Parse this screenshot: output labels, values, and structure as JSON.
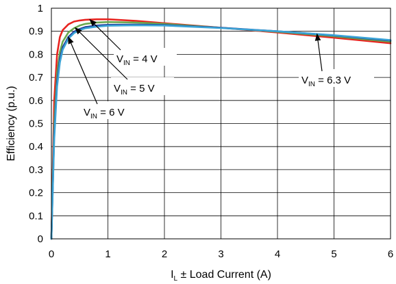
{
  "chart_data": {
    "type": "line",
    "title": "",
    "xlabel": {
      "main": "I",
      "sub": "L",
      "rest": " ± Load Current (A)"
    },
    "ylabel": "Efficiency (p.u.)",
    "xlim": [
      0,
      6
    ],
    "ylim": [
      0,
      1
    ],
    "xticks": [
      0,
      1,
      2,
      3,
      4,
      5,
      6
    ],
    "yticks": [
      0,
      0.1,
      0.2,
      0.3,
      0.4,
      0.5,
      0.6,
      0.7,
      0.8,
      0.9,
      1
    ],
    "grid": true,
    "series": [
      {
        "name": "V_IN = 4 V",
        "color": "#e8231f",
        "x": [
          0,
          0.05,
          0.1,
          0.15,
          0.2,
          0.3,
          0.4,
          0.5,
          0.6,
          0.8,
          1,
          1.5,
          2,
          3,
          4,
          5,
          6
        ],
        "y": [
          0,
          0.6,
          0.8,
          0.875,
          0.905,
          0.93,
          0.942,
          0.947,
          0.95,
          0.952,
          0.952,
          0.945,
          0.935,
          0.915,
          0.895,
          0.872,
          0.848
        ]
      },
      {
        "name": "V_IN = 5 V",
        "color": "#6aa84f",
        "x": [
          0,
          0.05,
          0.1,
          0.15,
          0.2,
          0.3,
          0.4,
          0.5,
          0.6,
          0.8,
          1,
          1.5,
          2,
          3,
          4,
          5,
          6
        ],
        "y": [
          0,
          0.5,
          0.72,
          0.81,
          0.855,
          0.895,
          0.913,
          0.925,
          0.932,
          0.938,
          0.94,
          0.938,
          0.932,
          0.915,
          0.898,
          0.878,
          0.855
        ]
      },
      {
        "name": "V_IN = 6 V",
        "color": "#1f3d99",
        "x": [
          0,
          0.05,
          0.1,
          0.15,
          0.2,
          0.3,
          0.4,
          0.5,
          0.6,
          0.8,
          1,
          1.5,
          2,
          3,
          4,
          5,
          6
        ],
        "y": [
          0,
          0.45,
          0.68,
          0.78,
          0.83,
          0.875,
          0.898,
          0.91,
          0.918,
          0.925,
          0.928,
          0.929,
          0.927,
          0.915,
          0.9,
          0.882,
          0.86
        ]
      },
      {
        "name": "V_IN = 6.3 V",
        "color": "#3aa3d6",
        "x": [
          0,
          0.05,
          0.1,
          0.15,
          0.2,
          0.3,
          0.4,
          0.5,
          0.6,
          0.8,
          1,
          1.5,
          2,
          3,
          4,
          5,
          6
        ],
        "y": [
          0,
          0.43,
          0.66,
          0.765,
          0.82,
          0.868,
          0.892,
          0.905,
          0.913,
          0.92,
          0.924,
          0.926,
          0.925,
          0.914,
          0.9,
          0.883,
          0.862
        ]
      }
    ],
    "annotations": [
      {
        "main": "V",
        "sub": "IN",
        "rest": " = 4 V",
        "target_series": 0,
        "target_x": 0.68
      },
      {
        "main": "V",
        "sub": "IN",
        "rest": " = 5 V",
        "target_series": 1,
        "target_x": 0.42
      },
      {
        "main": "V",
        "sub": "IN",
        "rest": " = 6 V",
        "target_series": 2,
        "target_x": 0.3
      },
      {
        "main": "V",
        "sub": "IN",
        "rest": " = 6.3 V",
        "target_series": 3,
        "target_x": 4.7
      }
    ]
  }
}
